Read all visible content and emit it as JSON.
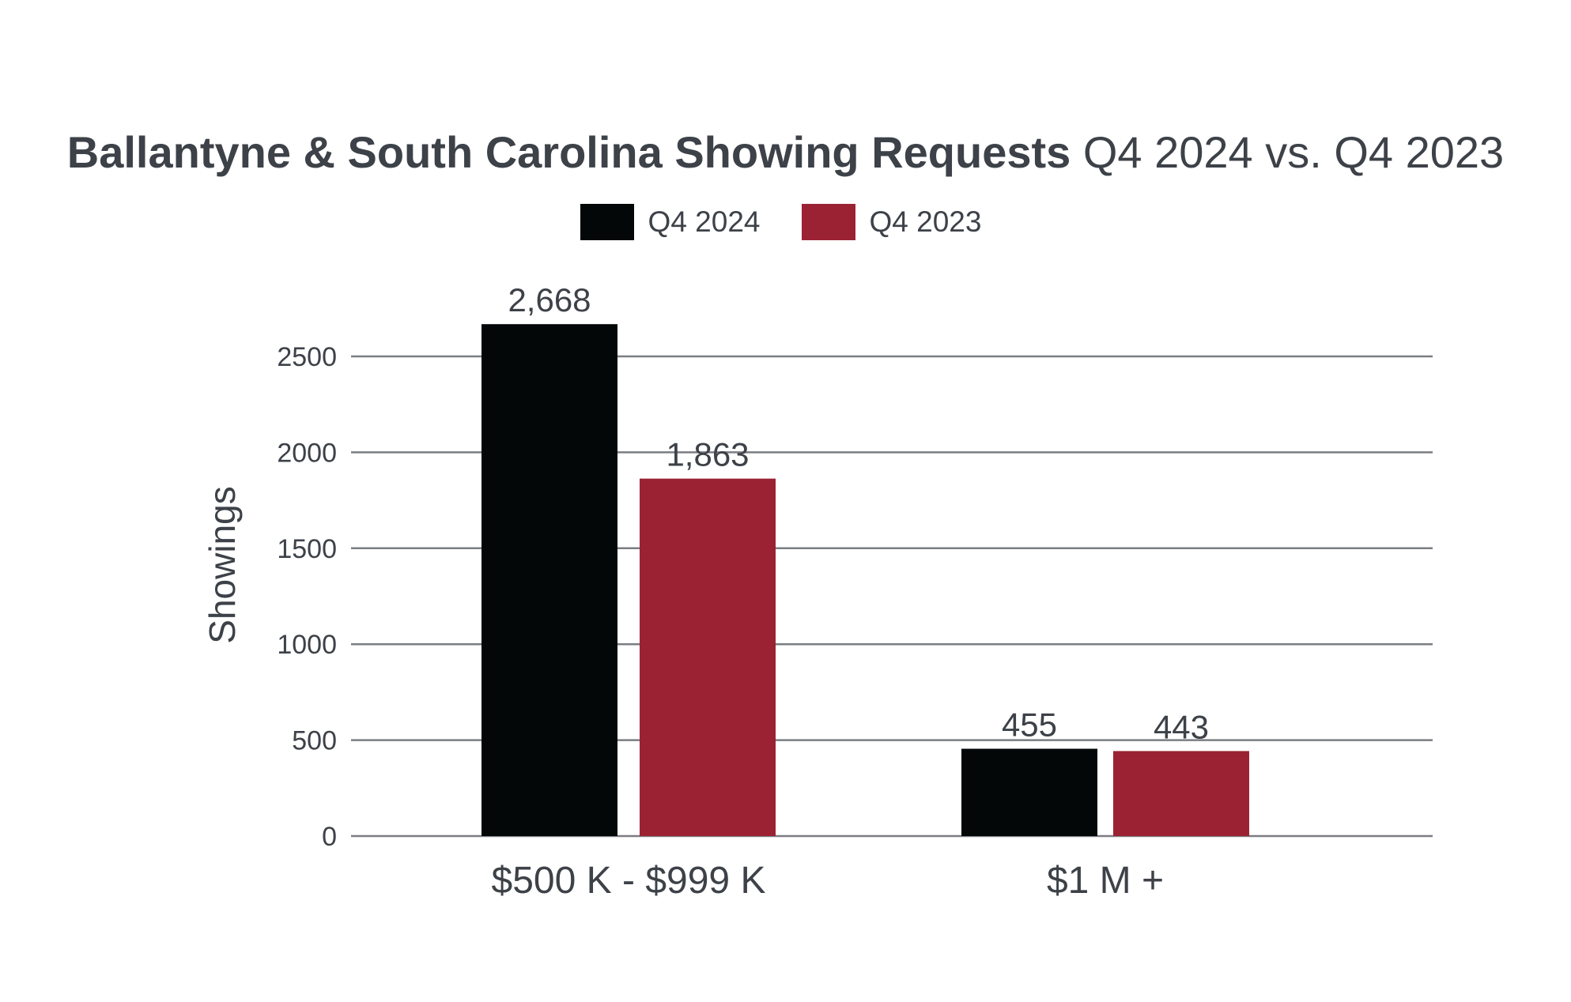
{
  "chart_data": {
    "type": "bar",
    "title": "Ballantyne & South Carolina Showing Requests",
    "subtitle": "Q4 2024 vs. Q4 2023",
    "xlabel": "",
    "ylabel": "Showings",
    "ylim": [
      0,
      2500
    ],
    "yticks": [
      0,
      500,
      1000,
      1500,
      2000,
      2500
    ],
    "grid": true,
    "legend_position": "top-center",
    "categories": [
      "$500 K - $999 K",
      "$1 M +"
    ],
    "series": [
      {
        "name": "Q4 2024",
        "color": "#030708",
        "values": [
          2668,
          455
        ],
        "labels": [
          "2,668",
          "455"
        ]
      },
      {
        "name": "Q4 2023",
        "color": "#9b2232",
        "values": [
          1863,
          443
        ],
        "labels": [
          "1,863",
          "443"
        ]
      }
    ]
  }
}
